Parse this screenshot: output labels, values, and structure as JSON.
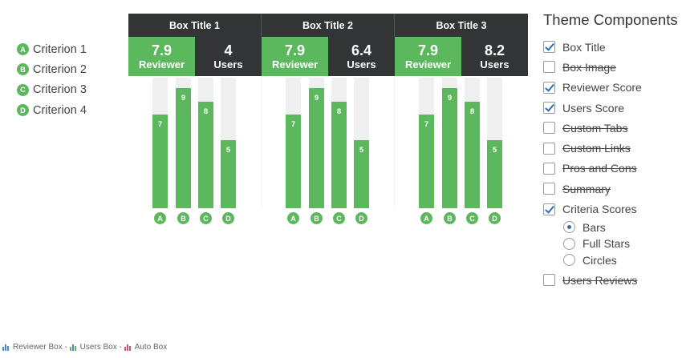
{
  "legend": [
    {
      "letter": "A",
      "label": "Criterion 1"
    },
    {
      "letter": "B",
      "label": "Criterion 2"
    },
    {
      "letter": "C",
      "label": "Criterion 3"
    },
    {
      "letter": "D",
      "label": "Criterion 4"
    }
  ],
  "boxes": [
    {
      "title": "Box Title 1",
      "reviewer_score": "7.9",
      "reviewer_label": "Reviewer",
      "users_score": "4",
      "users_label": "Users",
      "bars": [
        {
          "letter": "A",
          "value": 7
        },
        {
          "letter": "B",
          "value": 9
        },
        {
          "letter": "C",
          "value": 8
        },
        {
          "letter": "D",
          "value": 5
        }
      ]
    },
    {
      "title": "Box Title 2",
      "reviewer_score": "7.9",
      "reviewer_label": "Reviewer",
      "users_score": "6.4",
      "users_label": "Users",
      "bars": [
        {
          "letter": "A",
          "value": 7
        },
        {
          "letter": "B",
          "value": 9
        },
        {
          "letter": "C",
          "value": 8
        },
        {
          "letter": "D",
          "value": 5
        }
      ]
    },
    {
      "title": "Box Title 3",
      "reviewer_score": "7.9",
      "reviewer_label": "Reviewer",
      "users_score": "8.2",
      "users_label": "Users",
      "bars": [
        {
          "letter": "A",
          "value": 7
        },
        {
          "letter": "B",
          "value": 9
        },
        {
          "letter": "C",
          "value": 8
        },
        {
          "letter": "D",
          "value": 5
        }
      ]
    }
  ],
  "bar_max": 10,
  "theme": {
    "title": "Theme Components",
    "options": [
      {
        "label": "Box Title",
        "checked": true,
        "strike": false
      },
      {
        "label": "Box Image",
        "checked": false,
        "strike": true
      },
      {
        "label": "Reviewer Score",
        "checked": true,
        "strike": false
      },
      {
        "label": "Users Score",
        "checked": true,
        "strike": false
      },
      {
        "label": "Custom Tabs",
        "checked": false,
        "strike": true
      },
      {
        "label": "Custom Links",
        "checked": false,
        "strike": true
      },
      {
        "label": "Pros and Cons",
        "checked": false,
        "strike": true
      },
      {
        "label": "Summary",
        "checked": false,
        "strike": true
      },
      {
        "label": "Criteria Scores",
        "checked": true,
        "strike": false
      }
    ],
    "criteria_styles": [
      {
        "label": "Bars",
        "selected": true
      },
      {
        "label": "Full Stars",
        "selected": false
      },
      {
        "label": "Circles",
        "selected": false
      }
    ],
    "last_option": {
      "label": "Users Reviews",
      "checked": false,
      "strike": true
    }
  },
  "footer": {
    "reviewer_box": "Reviewer Box",
    "users_box": "Users Box",
    "auto_box": "Auto Box",
    "separator": " - "
  },
  "colors": {
    "green": "#5cb85c",
    "dark": "#333436",
    "check": "#2f6db5",
    "pink": "#d0508a",
    "blue": "#4a8ad0"
  }
}
